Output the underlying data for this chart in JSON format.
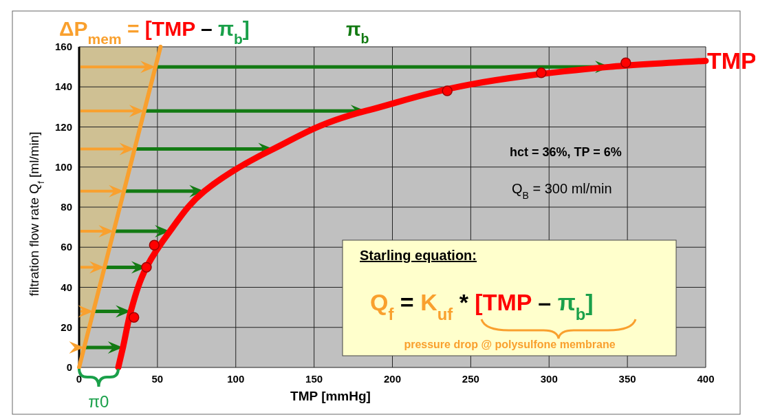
{
  "chart_data": {
    "type": "line",
    "title": "ΔP$_{mem}$ = [TMP – π$_{b}$]",
    "xlabel": "TMP [mmHg]",
    "ylabel": "filtration flow rate Q$_{f}$ [ml/min]",
    "xlim": [
      0,
      400
    ],
    "xticks": [
      0,
      50,
      100,
      150,
      200,
      250,
      300,
      350,
      400
    ],
    "ylim": [
      0,
      160
    ],
    "yticks": [
      0,
      20,
      40,
      60,
      80,
      100,
      120,
      140,
      160
    ],
    "grid": true,
    "legend": false,
    "series": [
      {
        "type": "line",
        "color": "#f9a02e",
        "x": [
          0,
          52
        ],
        "values": [
          0,
          160
        ]
      },
      {
        "type": "line",
        "name": "TMP",
        "color": "#ff0000",
        "x": [
          25,
          28,
          33,
          43,
          58,
          80,
          124,
          183,
          339,
          400
        ],
        "values": [
          0,
          10,
          28,
          50,
          68,
          88,
          109,
          128,
          150,
          153
        ]
      },
      {
        "type": "scatter",
        "color": "#ff0000",
        "marker": "circle",
        "x": [
          35,
          43,
          48,
          235,
          295,
          349
        ],
        "values": [
          25,
          50,
          61,
          138,
          147,
          152
        ]
      }
    ],
    "annotations": [
      "π$_{b}$",
      "π0",
      "hct = 36%, TP = 6%",
      "Q$_{B}$ = 300 ml/min",
      "Starling equation:",
      "Q$_{f}$ = K$_{uf}$ * [TMP – π$_{b}$]",
      "pressure drop @ polysulfone membrane"
    ]
  }
}
